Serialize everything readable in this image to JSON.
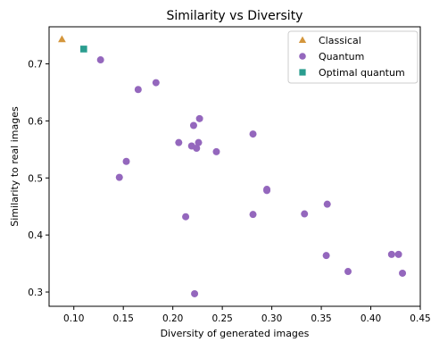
{
  "chart_data": {
    "type": "scatter",
    "title": "Similarity vs Diversity",
    "xlabel": "Diversity of generated images",
    "ylabel": "Similarity to real images",
    "xlim": [
      0.075,
      0.45
    ],
    "ylim": [
      0.275,
      0.765
    ],
    "xticks": [
      0.1,
      0.15,
      0.2,
      0.25,
      0.3,
      0.35,
      0.4,
      0.45
    ],
    "xtick_labels": [
      "0.10",
      "0.15",
      "0.20",
      "0.25",
      "0.30",
      "0.35",
      "0.40",
      "0.45"
    ],
    "yticks": [
      0.3,
      0.4,
      0.5,
      0.6,
      0.7
    ],
    "ytick_labels": [
      "0.3",
      "0.4",
      "0.5",
      "0.6",
      "0.7"
    ],
    "grid": false,
    "legend_position": "top-right",
    "series": [
      {
        "name": "Classical",
        "marker": "triangle",
        "color": "#D4963C",
        "points": [
          [
            0.088,
            0.743
          ]
        ]
      },
      {
        "name": "Quantum",
        "marker": "circle",
        "color": "#9467BD",
        "points": [
          [
            0.127,
            0.707
          ],
          [
            0.165,
            0.655
          ],
          [
            0.183,
            0.667
          ],
          [
            0.221,
            0.592
          ],
          [
            0.227,
            0.604
          ],
          [
            0.206,
            0.562
          ],
          [
            0.219,
            0.556
          ],
          [
            0.224,
            0.552
          ],
          [
            0.226,
            0.562
          ],
          [
            0.244,
            0.546
          ],
          [
            0.281,
            0.577
          ],
          [
            0.153,
            0.529
          ],
          [
            0.146,
            0.501
          ],
          [
            0.295,
            0.48
          ],
          [
            0.295,
            0.478
          ],
          [
            0.356,
            0.454
          ],
          [
            0.213,
            0.432
          ],
          [
            0.281,
            0.436
          ],
          [
            0.333,
            0.437
          ],
          [
            0.355,
            0.364
          ],
          [
            0.421,
            0.366
          ],
          [
            0.428,
            0.366
          ],
          [
            0.377,
            0.336
          ],
          [
            0.432,
            0.333
          ],
          [
            0.222,
            0.297
          ]
        ]
      },
      {
        "name": "Optimal quantum",
        "marker": "square",
        "color": "#2A9D8F",
        "points": [
          [
            0.11,
            0.726
          ]
        ]
      }
    ]
  }
}
